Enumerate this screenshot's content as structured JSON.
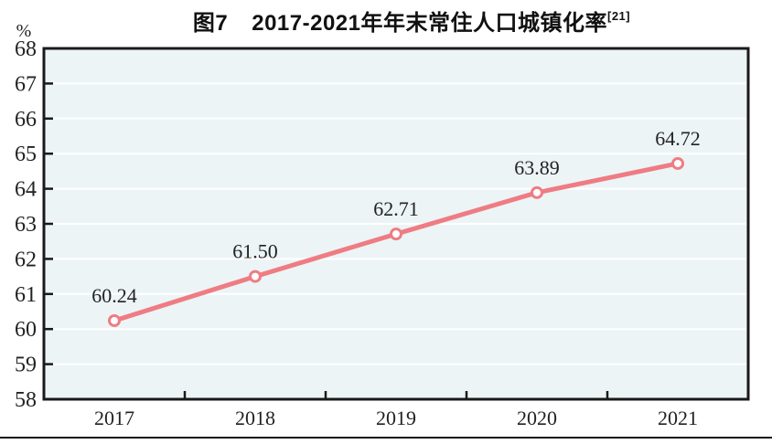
{
  "title": {
    "figure_label": "图7",
    "text": "2017-2021年年末常住人口城镇化率",
    "superscript": "[21]"
  },
  "chart_data": {
    "type": "line",
    "title": "图7 2017-2021年年末常住人口城镇化率[21]",
    "categories": [
      "2017",
      "2018",
      "2019",
      "2020",
      "2021"
    ],
    "values": [
      60.24,
      61.5,
      62.71,
      63.89,
      64.72
    ],
    "point_labels": [
      "60.24",
      "61.50",
      "62.71",
      "63.89",
      "64.72"
    ],
    "xlabel": "",
    "ylabel": "%",
    "ylim": [
      58,
      68
    ],
    "y_tick_step": 1,
    "grid": "horizontal",
    "legend_position": "none",
    "colors": {
      "line": "#ef7c83",
      "marker_fill": "#ffffff",
      "plot_background": "#ecf4f6",
      "gridline": "#ffffff",
      "axis": "#1a1a1a",
      "text": "#222222"
    }
  }
}
